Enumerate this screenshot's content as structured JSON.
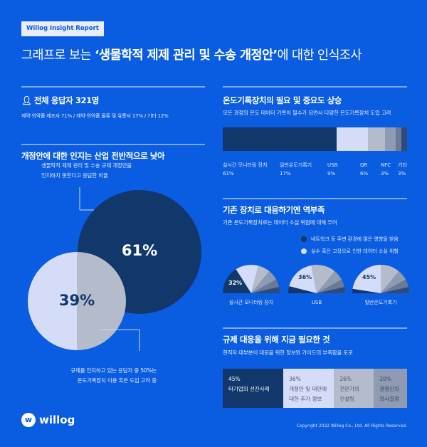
{
  "badge": "Willog Insight Report",
  "title": {
    "light": "그래프로 보는 ",
    "bold": "‘생물학적 제제 관리 및 수송 개정안’",
    "rest": "에 대한 인식조사"
  },
  "respondents": {
    "icon": "person-icon",
    "heading": "전체 응답자 321명",
    "breakdown": "제약·의약품 제조사 71% / 제약·의약품 물류 및 유통사 17% / 기타 12%"
  },
  "awareness": {
    "heading": "개정안에 대한 인지는 산업 전반적으로 낮아",
    "top_note_1": "생물학적 제제 관리 및 수송 규제 개정안을",
    "top_note_2": "인지하지 못한다고 응답한 비율",
    "unaware_pct": "61%",
    "aware_pct": "39%",
    "bottom_note_1": "규제를 인지하고 있는 응답자 중 50%는",
    "bottom_note_2": "온도기록장치 이용 혹은 도입 고려 중"
  },
  "devices": {
    "heading": "온도기록장치의 필요 및 중요도 상승",
    "desc": "모든 과정의 온도 데이터 기록이 필수가 되면서 다양한 온도기록장치 도입 고려",
    "segments": [
      {
        "label": "실시간 모니터링 장치",
        "pct": "61%",
        "value": 61,
        "color": "#12376a"
      },
      {
        "label": "일반온도기록기",
        "pct": "17%",
        "value": 17,
        "color": "#d5dcf8"
      },
      {
        "label": "USB",
        "pct": "9%",
        "value": 9,
        "color": "#b4bccb"
      },
      {
        "label": "QR",
        "pct": "6%",
        "value": 6,
        "color": "#8e9bb3"
      },
      {
        "label": "NFC",
        "pct": "3%",
        "value": 3,
        "color": "#6b7a96"
      },
      {
        "label": "기타",
        "pct": "3%",
        "value": 3,
        "color": "#2f4a78"
      }
    ]
  },
  "risks": {
    "heading": "기존 장치로 대응하기엔 역부족",
    "desc": "기존 온도기록장치로는 데이터 소실 위험에 대해 우려",
    "legend": [
      {
        "label": "네트워크 등 주변 환경에 많은 영향을 받음",
        "color": "#12376a"
      },
      {
        "label": "실수 혹은 고장으로 인한 데이터 소실 위험",
        "color": "#d5dcf8"
      }
    ],
    "fans": [
      {
        "label": "실시간 모니터링 장치",
        "pct": "32%",
        "highlight": "network",
        "shares": [
          32,
          26,
          14,
          12,
          9,
          7
        ]
      },
      {
        "label": "USB",
        "pct": "36%",
        "highlight": "loss",
        "shares": [
          8,
          36,
          28,
          12,
          9,
          7
        ]
      },
      {
        "label": "일반온도기록기",
        "pct": "45%",
        "highlight": "loss",
        "shares": [
          5,
          45,
          22,
          12,
          9,
          7
        ]
      }
    ]
  },
  "needs": {
    "heading": "규제 대응을 위해 지금 필요한 것",
    "desc": "현직자 대부분이 대응을 위한 정보와 가이드의 부족함을 토로",
    "items": [
      {
        "pct": "45%",
        "line1": "타기업의 선진사례",
        "line2": "",
        "value": 45,
        "color": "#12376a",
        "text": "#ffffff"
      },
      {
        "pct": "36%",
        "line1": "개정안 및 대안에",
        "line2": "대한 추가 정보",
        "value": 36,
        "color": "#d5dcf8",
        "text": "#4a5570"
      },
      {
        "pct": "26%",
        "line1": "전문가의",
        "line2": "컨설팅",
        "value": 26,
        "color": "#b4bccb",
        "text": "#4a5570"
      },
      {
        "pct": "20%",
        "line1": "경영진의",
        "line2": "의사결정",
        "value": 20,
        "color": "#8e9bb3",
        "text": "#3a4560"
      }
    ]
  },
  "logo": "willog",
  "copyright": "Copyright 2022 Willog Co., Ltd. All Rights Reserved."
}
